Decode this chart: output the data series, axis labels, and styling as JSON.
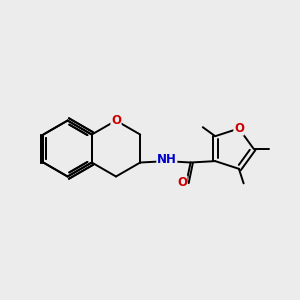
{
  "background_color": "#ececec",
  "bond_color": "#000000",
  "nitrogen_color": "#0000cc",
  "oxygen_color": "#cc0000",
  "font_size": 8.5,
  "line_width": 1.4,
  "figsize": [
    3.0,
    3.0
  ],
  "dpi": 100,
  "xlim": [
    0,
    10
  ],
  "ylim": [
    0,
    10
  ]
}
